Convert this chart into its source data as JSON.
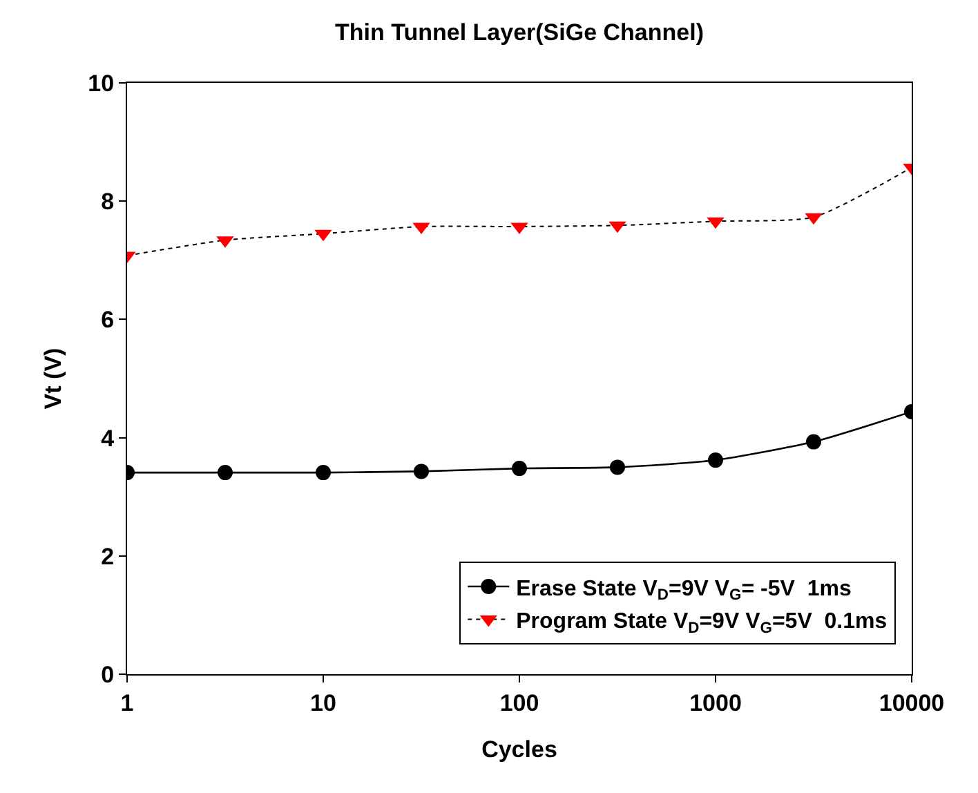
{
  "chart_data": {
    "type": "line",
    "title": "Thin Tunnel Layer(SiGe Channel)",
    "xlabel": "Cycles",
    "ylabel": "Vt (V)",
    "x": [
      1,
      3.162,
      10,
      31.62,
      100,
      316.2,
      1000,
      3162,
      10000
    ],
    "log": "x",
    "xlim": [
      1,
      10000
    ],
    "xticks": [
      1,
      10,
      100,
      1000,
      10000
    ],
    "ylim": [
      0,
      10
    ],
    "yticks": [
      0,
      2,
      4,
      6,
      8,
      10
    ],
    "grid": false,
    "legend": "bottom right",
    "series": [
      {
        "name": "Erase State V$_{D}$=9V V$_{G}$= -5V  1ms",
        "color": "#000000",
        "marker": "circle",
        "line_style": "solid",
        "values": [
          3.41,
          3.41,
          3.41,
          3.43,
          3.48,
          3.5,
          3.62,
          3.93,
          4.44
        ]
      },
      {
        "name": "Program State V$_{D}$=9V V$_{G}$=5V  0.1ms",
        "color": "#ff0000",
        "marker": "triangle",
        "line_style": "dotted",
        "values": [
          7.08,
          7.34,
          7.45,
          7.57,
          7.57,
          7.59,
          7.66,
          7.73,
          8.57
        ]
      }
    ]
  }
}
